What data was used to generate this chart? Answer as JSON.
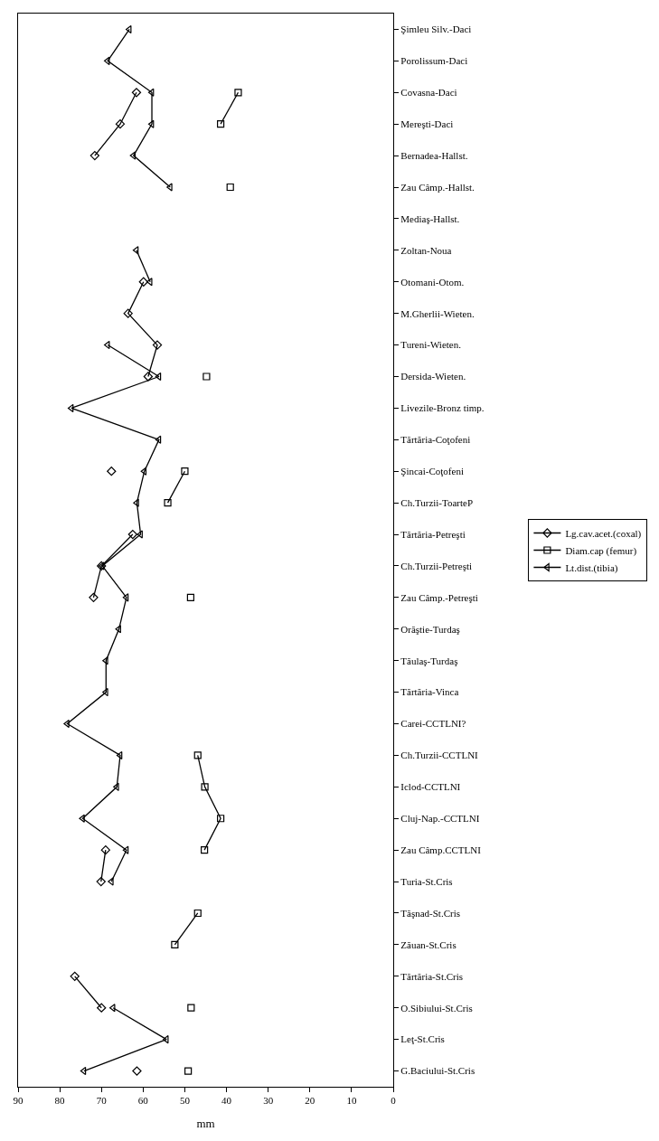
{
  "chart_data": {
    "type": "line",
    "orientation": "horizontal",
    "xlabel": "mm",
    "categories": [
      "Şimleu Silv.-Daci",
      "Porolissum-Daci",
      "Covasna-Daci",
      "Mereşti-Daci",
      "Bernadea-Hallst.",
      "Zau Câmp.-Hallst.",
      "Mediaş-Hallst.",
      "Zoltan-Noua",
      "Otomani-Otom.",
      "M.Gherlii-Wieten.",
      "Tureni-Wieten.",
      "Dersida-Wieten.",
      "Livezile-Bronz timp.",
      "Tărtăria-Coţofeni",
      "Şincai-Coţofeni",
      "Ch.Turzii-ToarteP",
      "Tărtăria-Petreşti",
      "Ch.Turzii-Petreşti",
      "Zau Câmp.-Petreşti",
      "Orăştie-Turdaş",
      "Tăulaş-Turdaş",
      "Tărtăria-Vinca",
      "Carei-CCTLNI?",
      "Ch.Turzii-CCTLNI",
      "Iclod-CCTLNI",
      "Cluj-Nap.-CCTLNI",
      "Zau Câmp.CCTLNI",
      "Turia-St.Cris",
      "Tăşnad-St.Cris",
      "Zăuan-St.Cris",
      "Tărtăria-St.Cris",
      "O.Sibiului-St.Cris",
      "Leţ-St.Cris",
      "G.Baciului-St.Cris"
    ],
    "series": [
      {
        "name": "Lg.cav.acet.(coxal)",
        "color": "#000000",
        "marker": "diamond",
        "values": [
          null,
          null,
          61.6,
          65.5,
          71.6,
          null,
          null,
          null,
          59.9,
          63.6,
          56.6,
          58.8,
          null,
          null,
          67.6,
          null,
          62.5,
          70.0,
          71.9,
          null,
          null,
          null,
          null,
          null,
          null,
          null,
          69.0,
          70.1,
          null,
          null,
          76.4,
          70.0,
          null,
          61.5
        ]
      },
      {
        "name": "Diam.cap (femur)",
        "color": "#000000",
        "marker": "square",
        "values": [
          null,
          null,
          37.2,
          41.4,
          null,
          39.1,
          null,
          null,
          null,
          null,
          null,
          44.8,
          null,
          null,
          50.0,
          54.1,
          null,
          null,
          48.6,
          null,
          null,
          null,
          null,
          46.9,
          45.2,
          41.4,
          45.3,
          null,
          46.9,
          52.4,
          null,
          48.5,
          null,
          49.2
        ]
      },
      {
        "name": "Lt.dist.(tibia)",
        "color": "#000000",
        "marker": "triangle",
        "values": [
          63.3,
          68.5,
          57.9,
          57.9,
          62.3,
          53.5,
          null,
          61.6,
          58.3,
          null,
          68.5,
          56.2,
          77.2,
          56.2,
          59.7,
          61.5,
          60.6,
          69.8,
          64.0,
          65.8,
          68.9,
          68.9,
          78.2,
          65.5,
          66.3,
          74.5,
          64.0,
          67.6,
          null,
          null,
          null,
          67.2,
          54.4,
          74.2
        ]
      }
    ],
    "xlim": [
      90,
      0
    ],
    "xticks": [
      0,
      10,
      20,
      30,
      40,
      50,
      60,
      70,
      80,
      90
    ],
    "grid": false,
    "legend": "right",
    "line_style": "solid"
  }
}
